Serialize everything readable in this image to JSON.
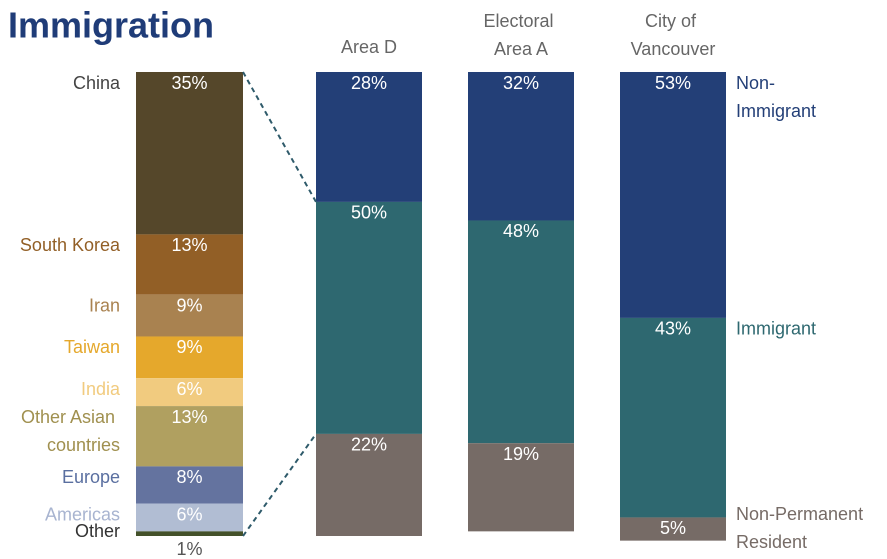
{
  "chart_data": [
    {
      "type": "breakdown",
      "title": "Immigration",
      "categories": [
        "China",
        "South Korea",
        "Iran",
        "Taiwan",
        "India",
        "Other Asian countries",
        "Europe",
        "Americas",
        "Other"
      ],
      "values": [
        35,
        13,
        9,
        9,
        6,
        13,
        8,
        6,
        1
      ],
      "value_labels": [
        "35%",
        "13%",
        "9%",
        "9%",
        "6%",
        "13%",
        "8%",
        "6%",
        "1%"
      ],
      "colors": [
        "#55472a",
        "#925f26",
        "#a98250",
        "#e5a82c",
        "#f1cb7f",
        "#b0a060",
        "#64739f",
        "#b1bdd3",
        "#44512a"
      ],
      "label_colors": [
        "#444444",
        "#925f26",
        "#a98250",
        "#e5a82c",
        "#f1cb7f",
        "#a0904f",
        "#5a6fa0",
        "#a8b4d0",
        "#333333"
      ],
      "ylim": [
        0,
        100
      ]
    },
    {
      "type": "stacked_bar",
      "categories": [
        "Area D",
        "Electoral Area A",
        "City of Vancouver"
      ],
      "series": [
        {
          "name": "Non-Immigrant",
          "color": "#233f77",
          "values": [
            28,
            32,
            53
          ],
          "value_labels": [
            "28%",
            "32%",
            "53%"
          ]
        },
        {
          "name": "Immigrant",
          "color": "#2e6870",
          "values": [
            50,
            48,
            43
          ],
          "value_labels": [
            "50%",
            "48%",
            "43%"
          ]
        },
        {
          "name": "Non-Permanent Resident",
          "color": "#766b66",
          "values": [
            22,
            19,
            5
          ],
          "value_labels": [
            "22%",
            "19%",
            "5%"
          ]
        }
      ],
      "ylim": [
        0,
        100
      ]
    }
  ]
}
